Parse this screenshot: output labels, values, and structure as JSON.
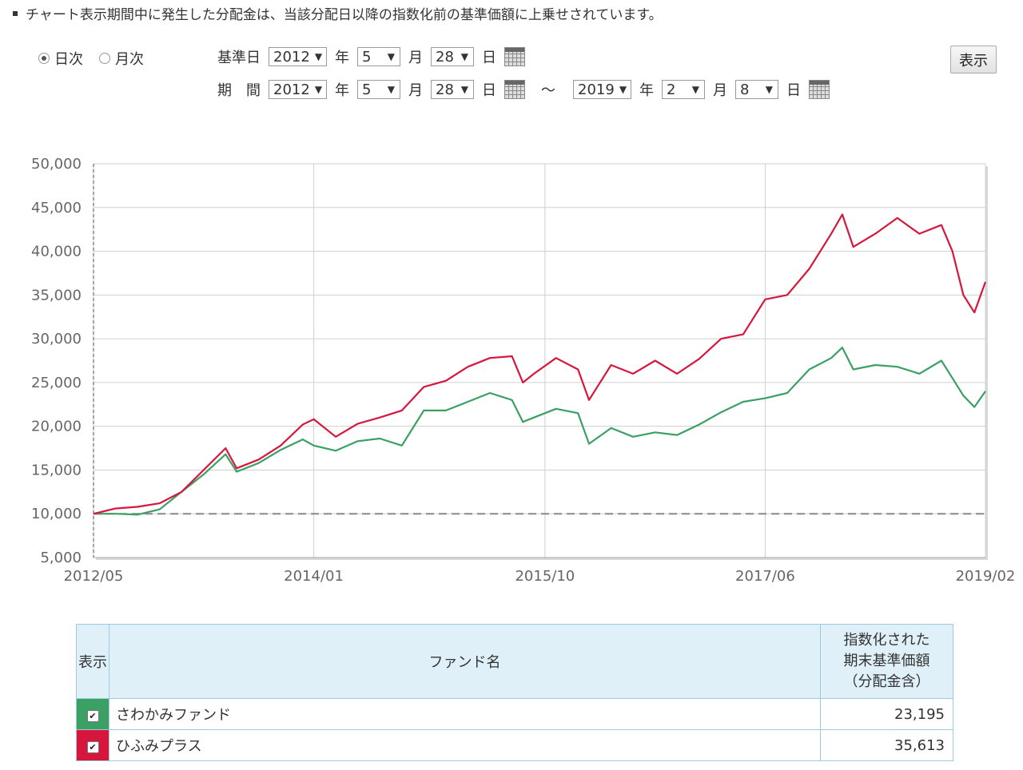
{
  "note": "チャート表示期間中に発生した分配金は、当該分配日以降の指数化前の基準価額に上乗せされています。",
  "mode": {
    "options": [
      {
        "label": "日次",
        "checked": true
      },
      {
        "label": "月次",
        "checked": false
      }
    ]
  },
  "base_date": {
    "label": "基準日",
    "year": "2012",
    "month": "5",
    "day": "28"
  },
  "period": {
    "label": "期　間",
    "from": {
      "year": "2012",
      "month": "5",
      "day": "28"
    },
    "to": {
      "year": "2019",
      "month": "2",
      "day": "8"
    },
    "separator": "～"
  },
  "units": {
    "year": "年",
    "month": "月",
    "day": "日"
  },
  "show_button": "表示",
  "chart_data": {
    "type": "line",
    "title": "",
    "xlabel": "",
    "ylabel": "",
    "ylim": [
      5000,
      50000
    ],
    "xlim": [
      "2012/05",
      "2019/02"
    ],
    "y_ticks": [
      "50,000",
      "45,000",
      "40,000",
      "35,000",
      "30,000",
      "25,000",
      "20,000",
      "15,000",
      "10,000",
      "5,000"
    ],
    "x_ticks": [
      "2012/05",
      "2014/01",
      "2015/10",
      "2017/06",
      "2019/02"
    ],
    "grid": true,
    "baseline": 10000,
    "series": [
      {
        "name": "ひふみプラス",
        "color": "#d6163c",
        "x": [
          "2012/05",
          "2012/07",
          "2012/09",
          "2012/11",
          "2013/01",
          "2013/03",
          "2013/05",
          "2013/06",
          "2013/08",
          "2013/10",
          "2013/12",
          "2014/01",
          "2014/03",
          "2014/05",
          "2014/07",
          "2014/09",
          "2014/11",
          "2015/01",
          "2015/03",
          "2015/05",
          "2015/07",
          "2015/08",
          "2015/09",
          "2015/11",
          "2016/01",
          "2016/02",
          "2016/04",
          "2016/06",
          "2016/08",
          "2016/10",
          "2016/12",
          "2017/02",
          "2017/04",
          "2017/06",
          "2017/08",
          "2017/10",
          "2017/12",
          "2018/01",
          "2018/02",
          "2018/04",
          "2018/06",
          "2018/08",
          "2018/10",
          "2018/11",
          "2018/12",
          "2019/01",
          "2019/02"
        ],
        "values": [
          10000,
          10600,
          10800,
          11200,
          12500,
          15000,
          17500,
          15200,
          16200,
          17800,
          20200,
          20800,
          18800,
          20300,
          21000,
          21800,
          24500,
          25200,
          26800,
          27800,
          28000,
          25000,
          26000,
          27800,
          26500,
          23000,
          27000,
          26000,
          27500,
          26000,
          27700,
          30000,
          30500,
          34500,
          35000,
          38000,
          42000,
          44200,
          40500,
          42000,
          43800,
          42000,
          43000,
          40000,
          35000,
          33000,
          36500
        ]
      },
      {
        "name": "さわかみファンド",
        "color": "#3aa064",
        "x": [
          "2012/05",
          "2012/07",
          "2012/09",
          "2012/11",
          "2013/01",
          "2013/03",
          "2013/05",
          "2013/06",
          "2013/08",
          "2013/10",
          "2013/12",
          "2014/01",
          "2014/03",
          "2014/05",
          "2014/07",
          "2014/09",
          "2014/11",
          "2015/01",
          "2015/03",
          "2015/05",
          "2015/07",
          "2015/08",
          "2015/09",
          "2015/11",
          "2016/01",
          "2016/02",
          "2016/04",
          "2016/06",
          "2016/08",
          "2016/10",
          "2016/12",
          "2017/02",
          "2017/04",
          "2017/06",
          "2017/08",
          "2017/10",
          "2017/12",
          "2018/01",
          "2018/02",
          "2018/04",
          "2018/06",
          "2018/08",
          "2018/10",
          "2018/11",
          "2018/12",
          "2019/01",
          "2019/02"
        ],
        "values": [
          10000,
          10000,
          9900,
          10500,
          12500,
          14500,
          16800,
          14800,
          15800,
          17300,
          18500,
          17800,
          17200,
          18300,
          18600,
          17800,
          21800,
          21800,
          22800,
          23800,
          23000,
          20500,
          21000,
          22000,
          21500,
          18000,
          19800,
          18800,
          19300,
          19000,
          20200,
          21600,
          22800,
          23200,
          23800,
          26500,
          27800,
          29000,
          26500,
          27000,
          26800,
          26000,
          27500,
          25500,
          23500,
          22200,
          24000
        ]
      }
    ]
  },
  "table": {
    "headers": {
      "show": "表示",
      "name": "ファンド名",
      "value_lines": [
        "指数化された",
        "期末基準価額",
        "（分配金含）"
      ]
    },
    "rows": [
      {
        "name": "さわかみファンド",
        "value": "23,195",
        "color": "#3aa064",
        "checked": true
      },
      {
        "name": "ひふみプラス",
        "value": "35,613",
        "color": "#d6163c",
        "checked": true
      }
    ]
  }
}
